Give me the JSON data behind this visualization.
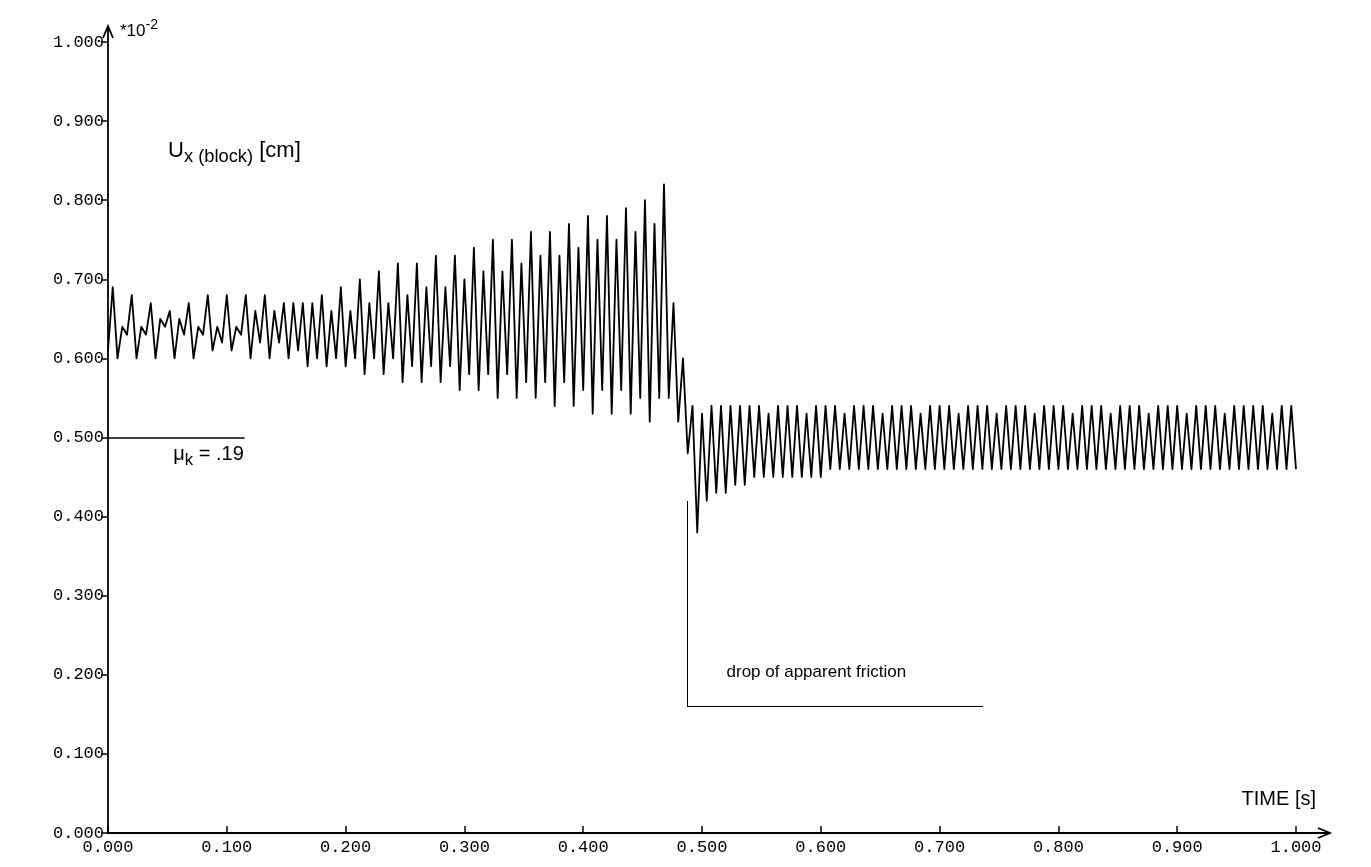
{
  "chart_data": {
    "type": "line",
    "xlabel": "TIME [s]",
    "ylabel": "U$_{x (block)}$ [cm]",
    "annotations": [
      "*10$^{-2}$",
      "drop of  apparent friction"
    ],
    "xlim": [
      0,
      1.0
    ],
    "ylim": [
      0,
      1.0
    ],
    "xticks": [
      {
        "value": 0,
        "label": "0.000"
      },
      {
        "value": 0.1,
        "label": "0.100"
      },
      {
        "value": 0.2,
        "label": "0.200"
      },
      {
        "value": 0.3,
        "label": "0.300"
      },
      {
        "value": 0.4,
        "label": "0.400"
      },
      {
        "value": 0.5,
        "label": "0.500"
      },
      {
        "value": 0.6,
        "label": "0.600"
      },
      {
        "value": 0.7,
        "label": "0.700"
      },
      {
        "value": 0.8,
        "label": "0.800"
      },
      {
        "value": 0.9,
        "label": "0.900"
      },
      {
        "value": 1.0,
        "label": "1.000"
      }
    ],
    "yticks": [
      {
        "value": 0,
        "label": "0.000"
      },
      {
        "value": 0.1,
        "label": "0.100"
      },
      {
        "value": 0.2,
        "label": "0.200"
      },
      {
        "value": 0.3,
        "label": "0.300"
      },
      {
        "value": 0.4,
        "label": "0.400"
      },
      {
        "value": 0.5,
        "label": "0.500"
      },
      {
        "value": 0.6,
        "label": "0.600"
      },
      {
        "value": 0.7,
        "label": "0.700"
      },
      {
        "value": 0.8,
        "label": "0.800"
      },
      {
        "value": 0.9,
        "label": "0.900"
      },
      {
        "value": 1.0,
        "label": "1.000"
      }
    ],
    "ref_lines": [
      {
        "axis": "y",
        "value": 0.5,
        "label": "μ$_{k}$ = .19",
        "color": "#000000"
      }
    ],
    "grid": false,
    "line_style": "solid",
    "x": [
      0,
      0.004,
      0.008,
      0.012,
      0.016,
      0.02,
      0.024,
      0.028,
      0.032,
      0.036,
      0.04,
      0.044,
      0.048,
      0.052,
      0.056,
      0.06,
      0.064,
      0.068,
      0.072,
      0.076,
      0.08,
      0.084,
      0.088,
      0.092,
      0.096,
      0.1,
      0.104,
      0.108,
      0.112,
      0.116,
      0.12,
      0.124,
      0.128,
      0.132,
      0.136,
      0.14,
      0.144,
      0.148,
      0.152,
      0.156,
      0.16,
      0.164,
      0.168,
      0.172,
      0.176,
      0.18,
      0.184,
      0.188,
      0.192,
      0.196,
      0.2,
      0.204,
      0.208,
      0.212,
      0.216,
      0.22,
      0.224,
      0.228,
      0.232,
      0.236,
      0.24,
      0.244,
      0.248,
      0.252,
      0.256,
      0.26,
      0.264,
      0.268,
      0.272,
      0.276,
      0.28,
      0.284,
      0.288,
      0.292,
      0.296,
      0.3,
      0.304,
      0.308,
      0.312,
      0.316,
      0.32,
      0.324,
      0.328,
      0.332,
      0.336,
      0.34,
      0.344,
      0.348,
      0.352,
      0.356,
      0.36,
      0.364,
      0.368,
      0.372,
      0.376,
      0.38,
      0.384,
      0.388,
      0.392,
      0.396,
      0.4,
      0.404,
      0.408,
      0.412,
      0.416,
      0.42,
      0.424,
      0.428,
      0.432,
      0.436,
      0.44,
      0.444,
      0.448,
      0.452,
      0.456,
      0.46,
      0.464,
      0.468,
      0.472,
      0.476,
      0.48,
      0.484,
      0.488,
      0.492,
      0.496,
      0.5,
      0.504,
      0.508,
      0.512,
      0.516,
      0.52,
      0.524,
      0.528,
      0.532,
      0.536,
      0.54,
      0.544,
      0.548,
      0.552,
      0.556,
      0.56,
      0.564,
      0.568,
      0.572,
      0.576,
      0.58,
      0.584,
      0.588,
      0.592,
      0.596,
      0.6,
      0.604,
      0.608,
      0.612,
      0.616,
      0.62,
      0.624,
      0.628,
      0.632,
      0.636,
      0.64,
      0.644,
      0.648,
      0.652,
      0.656,
      0.66,
      0.664,
      0.668,
      0.672,
      0.676,
      0.68,
      0.684,
      0.688,
      0.692,
      0.696,
      0.7,
      0.704,
      0.708,
      0.712,
      0.716,
      0.72,
      0.724,
      0.728,
      0.732,
      0.736,
      0.74,
      0.744,
      0.748,
      0.752,
      0.756,
      0.76,
      0.764,
      0.768,
      0.772,
      0.776,
      0.78,
      0.784,
      0.788,
      0.792,
      0.796,
      0.8,
      0.804,
      0.808,
      0.812,
      0.816,
      0.82,
      0.824,
      0.828,
      0.832,
      0.836,
      0.84,
      0.844,
      0.848,
      0.852,
      0.856,
      0.86,
      0.864,
      0.868,
      0.872,
      0.876,
      0.88,
      0.884,
      0.888,
      0.892,
      0.896,
      0.9,
      0.904,
      0.908,
      0.912,
      0.916,
      0.92,
      0.924,
      0.928,
      0.932,
      0.936,
      0.94,
      0.944,
      0.948,
      0.952,
      0.956,
      0.96,
      0.964,
      0.968,
      0.972,
      0.976,
      0.98,
      0.984,
      0.988,
      0.992,
      0.996,
      1.0
    ],
    "series": [
      {
        "color": "#000000",
        "values": [
          0.61,
          0.69,
          0.6,
          0.64,
          0.63,
          0.68,
          0.6,
          0.64,
          0.63,
          0.67,
          0.6,
          0.65,
          0.64,
          0.66,
          0.6,
          0.65,
          0.63,
          0.67,
          0.6,
          0.64,
          0.63,
          0.68,
          0.61,
          0.64,
          0.62,
          0.68,
          0.61,
          0.64,
          0.63,
          0.68,
          0.6,
          0.66,
          0.62,
          0.68,
          0.6,
          0.66,
          0.62,
          0.67,
          0.6,
          0.67,
          0.61,
          0.67,
          0.59,
          0.67,
          0.6,
          0.68,
          0.59,
          0.66,
          0.6,
          0.69,
          0.59,
          0.66,
          0.6,
          0.7,
          0.58,
          0.67,
          0.6,
          0.71,
          0.58,
          0.67,
          0.6,
          0.72,
          0.57,
          0.68,
          0.59,
          0.72,
          0.57,
          0.69,
          0.59,
          0.73,
          0.57,
          0.69,
          0.59,
          0.73,
          0.56,
          0.7,
          0.58,
          0.74,
          0.56,
          0.71,
          0.58,
          0.75,
          0.55,
          0.71,
          0.58,
          0.75,
          0.55,
          0.72,
          0.57,
          0.76,
          0.55,
          0.73,
          0.57,
          0.76,
          0.54,
          0.73,
          0.57,
          0.77,
          0.54,
          0.74,
          0.56,
          0.78,
          0.53,
          0.75,
          0.56,
          0.78,
          0.53,
          0.75,
          0.56,
          0.79,
          0.53,
          0.76,
          0.55,
          0.8,
          0.52,
          0.77,
          0.55,
          0.82,
          0.55,
          0.67,
          0.52,
          0.6,
          0.48,
          0.54,
          0.38,
          0.53,
          0.42,
          0.54,
          0.43,
          0.54,
          0.43,
          0.54,
          0.44,
          0.54,
          0.44,
          0.54,
          0.45,
          0.54,
          0.45,
          0.53,
          0.45,
          0.54,
          0.45,
          0.54,
          0.45,
          0.54,
          0.45,
          0.53,
          0.45,
          0.54,
          0.45,
          0.54,
          0.46,
          0.54,
          0.46,
          0.53,
          0.46,
          0.54,
          0.46,
          0.54,
          0.46,
          0.54,
          0.46,
          0.53,
          0.46,
          0.54,
          0.46,
          0.54,
          0.46,
          0.54,
          0.46,
          0.53,
          0.46,
          0.54,
          0.46,
          0.54,
          0.46,
          0.54,
          0.46,
          0.53,
          0.46,
          0.54,
          0.46,
          0.54,
          0.46,
          0.54,
          0.46,
          0.53,
          0.46,
          0.54,
          0.46,
          0.54,
          0.46,
          0.54,
          0.46,
          0.53,
          0.46,
          0.54,
          0.46,
          0.54,
          0.46,
          0.54,
          0.46,
          0.53,
          0.46,
          0.54,
          0.46,
          0.54,
          0.46,
          0.54,
          0.46,
          0.53,
          0.46,
          0.54,
          0.46,
          0.54,
          0.46,
          0.54,
          0.46,
          0.53,
          0.46,
          0.54,
          0.46,
          0.54,
          0.46,
          0.54,
          0.46,
          0.53,
          0.46,
          0.54,
          0.46,
          0.54,
          0.46,
          0.54,
          0.46,
          0.53,
          0.46,
          0.54,
          0.46,
          0.54,
          0.46,
          0.54,
          0.46,
          0.54,
          0.46,
          0.53,
          0.46,
          0.54,
          0.46,
          0.54,
          0.46
        ]
      }
    ]
  }
}
